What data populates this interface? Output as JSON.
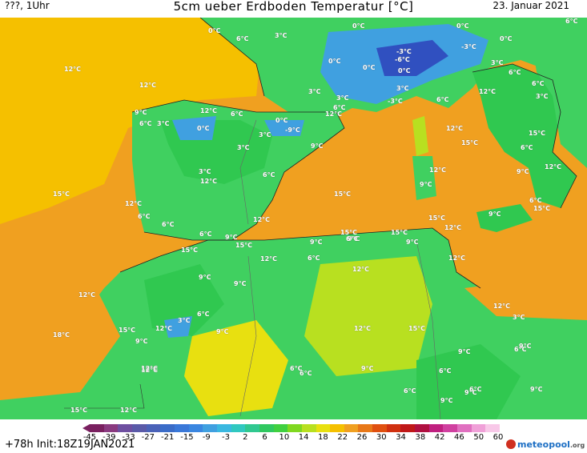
{
  "header": {
    "run_label": "???, 1Uhr",
    "title": "5cm ueber Erdboden Temperatur [°C]",
    "date": "23. Januar 2021"
  },
  "colors": {
    "sea_warm": "#f0a020",
    "sea_mild": "#f5c000",
    "land_cool": "#30c850",
    "land_mid": "#40d060",
    "land_warm": "#b8e020",
    "cold": "#40a0e0",
    "very_cold": "#3050c0"
  },
  "labels": [
    {
      "text": "0°C"
    },
    {
      "text": "6°C"
    },
    {
      "text": "3°C"
    },
    {
      "text": "0°C"
    },
    {
      "text": "0°C"
    },
    {
      "text": "0°C"
    },
    {
      "text": "6°C"
    },
    {
      "text": "12°C"
    },
    {
      "text": "12°C"
    },
    {
      "text": "0°C"
    },
    {
      "text": "-3°C"
    },
    {
      "text": "-6°C"
    },
    {
      "text": "0°C"
    },
    {
      "text": "0°C"
    },
    {
      "text": "-3°C"
    },
    {
      "text": "3°C"
    },
    {
      "text": "3°C"
    },
    {
      "text": "3°C"
    },
    {
      "text": "6°C"
    },
    {
      "text": "-3°C"
    },
    {
      "text": "6°C"
    },
    {
      "text": "3°C"
    },
    {
      "text": "6°C"
    },
    {
      "text": "12°C"
    },
    {
      "text": "9°C"
    },
    {
      "text": "12°C"
    },
    {
      "text": "6°C"
    },
    {
      "text": "0°C"
    },
    {
      "text": "-9°C"
    },
    {
      "text": "12°C"
    },
    {
      "text": "6°C"
    },
    {
      "text": "3°C"
    },
    {
      "text": "0°C"
    },
    {
      "text": "3°C"
    },
    {
      "text": "3°C"
    },
    {
      "text": "6°C"
    },
    {
      "text": "12°C"
    },
    {
      "text": "9°C"
    },
    {
      "text": "15°C"
    },
    {
      "text": "3°C"
    },
    {
      "text": "6°C"
    },
    {
      "text": "12°C"
    },
    {
      "text": "15°C"
    },
    {
      "text": "12°C"
    },
    {
      "text": "9°C"
    },
    {
      "text": "3°C"
    },
    {
      "text": "15°C"
    },
    {
      "text": "15°C"
    },
    {
      "text": "9°C"
    },
    {
      "text": "6°C"
    },
    {
      "text": "12°C"
    },
    {
      "text": "12°C"
    },
    {
      "text": "15°C"
    },
    {
      "text": "6°C"
    },
    {
      "text": "12°C"
    },
    {
      "text": "15°C"
    },
    {
      "text": "6°C"
    },
    {
      "text": "9°C"
    },
    {
      "text": "15°C"
    },
    {
      "text": "15°C"
    },
    {
      "text": "6°C"
    },
    {
      "text": "12°C"
    },
    {
      "text": "9°C"
    },
    {
      "text": "6°C"
    },
    {
      "text": "12°C"
    },
    {
      "text": "15°C"
    },
    {
      "text": "9°C"
    },
    {
      "text": "15°C"
    },
    {
      "text": "6°C"
    },
    {
      "text": "12°C"
    },
    {
      "text": "12°C"
    },
    {
      "text": "9°C"
    },
    {
      "text": "9°C"
    },
    {
      "text": "9°C"
    },
    {
      "text": "12°C"
    },
    {
      "text": "6°C"
    },
    {
      "text": "9°C"
    },
    {
      "text": "18°C"
    },
    {
      "text": "15°C"
    },
    {
      "text": "12°C"
    },
    {
      "text": "3°C"
    },
    {
      "text": "6°C"
    },
    {
      "text": "9°C"
    },
    {
      "text": "12°C"
    },
    {
      "text": "12°C"
    },
    {
      "text": "9°C"
    },
    {
      "text": "12°C"
    },
    {
      "text": "15°C"
    },
    {
      "text": "12°C"
    },
    {
      "text": "9°C"
    },
    {
      "text": "3°C"
    },
    {
      "text": "6°C"
    },
    {
      "text": "9°C"
    },
    {
      "text": "6°C"
    },
    {
      "text": "6°C"
    },
    {
      "text": "9°C"
    },
    {
      "text": "6°C"
    },
    {
      "text": "9°C"
    },
    {
      "text": "9°C"
    },
    {
      "text": "6°C"
    },
    {
      "text": "9°C"
    },
    {
      "text": "6°C"
    },
    {
      "text": "15°C"
    },
    {
      "text": "12°C"
    }
  ],
  "colorbar": {
    "ticks": [
      "-45",
      "-39",
      "-33",
      "-27",
      "-21",
      "-15",
      "-9",
      "-3",
      "2",
      "6",
      "10",
      "14",
      "18",
      "22",
      "26",
      "30",
      "34",
      "38",
      "42",
      "46",
      "50",
      "60"
    ],
    "colors": [
      "#7a2060",
      "#8a3a80",
      "#6e4fa0",
      "#5a5aa8",
      "#4a62b8",
      "#3a6cc8",
      "#3a78d8",
      "#3a86e0",
      "#40a0e0",
      "#3ab8e0",
      "#30c8c0",
      "#30c890",
      "#30c860",
      "#40d040",
      "#80d820",
      "#b8e020",
      "#e8e010",
      "#f5c000",
      "#f0a020",
      "#e87818",
      "#e05010",
      "#d03010",
      "#c01818",
      "#b01040",
      "#c02080",
      "#d040a0",
      "#e070c0",
      "#f0a0d8",
      "#f8c8e8"
    ]
  },
  "footer": {
    "init": "+78h Init:18Z19JAN2021",
    "logo_main": "meteopool",
    "logo_suffix": ".org"
  }
}
